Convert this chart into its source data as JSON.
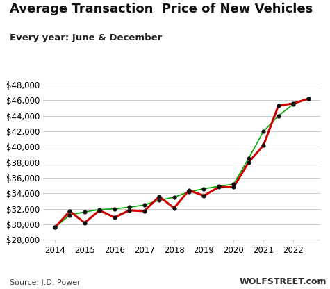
{
  "title": "Average Transaction  Price of New Vehicles",
  "subtitle": "Every year: June & December",
  "source_left": "Source: J.D. Power",
  "source_right": "WOLFSTREET.com",
  "x_values": [
    2014.0,
    2014.5,
    2015.0,
    2015.5,
    2016.0,
    2016.5,
    2017.0,
    2017.5,
    2018.0,
    2018.5,
    2019.0,
    2019.5,
    2020.0,
    2020.5,
    2021.0,
    2021.5,
    2022.0,
    2022.5
  ],
  "red_values": [
    29600,
    31700,
    30200,
    31800,
    30900,
    31800,
    31700,
    33600,
    32100,
    34400,
    33700,
    34800,
    34800,
    38000,
    40200,
    45300,
    45600,
    46200
  ],
  "green_values": [
    29600,
    31200,
    31600,
    31900,
    32000,
    32200,
    32500,
    33100,
    33500,
    34200,
    34600,
    34900,
    35200,
    38500,
    42000,
    44000,
    45500,
    46200
  ],
  "ylim": [
    28000,
    48500
  ],
  "yticks": [
    28000,
    30000,
    32000,
    34000,
    36000,
    38000,
    40000,
    42000,
    44000,
    46000,
    48000
  ],
  "xticks": [
    2014,
    2015,
    2016,
    2017,
    2018,
    2019,
    2020,
    2021,
    2022
  ],
  "xlim": [
    2013.6,
    2022.9
  ],
  "red_color": "#CC0000",
  "green_color": "#00AA00",
  "marker_color": "#111111",
  "bg_color": "#FFFFFF",
  "grid_color": "#CCCCCC",
  "title_fontsize": 13,
  "subtitle_fontsize": 9.5,
  "tick_fontsize": 8.5,
  "source_fontsize": 8
}
